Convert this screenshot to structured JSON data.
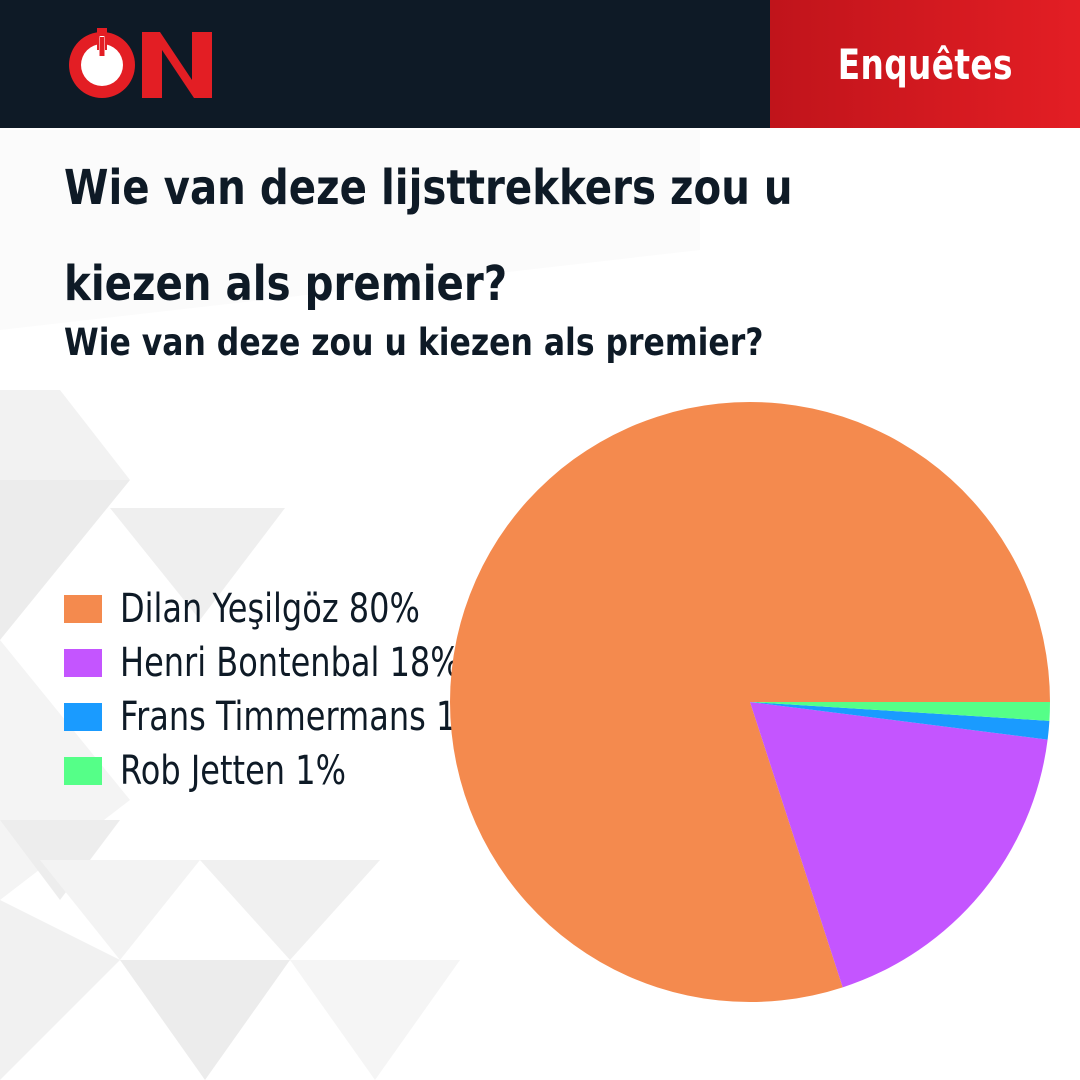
{
  "header": {
    "logo_text": "ON",
    "section_label": "Enquêtes",
    "brand_color": "#e31e24",
    "bar_color": "#0e1a26"
  },
  "question": {
    "title": "Wie van deze lijsttrekkers zou u kiezen als premier?",
    "subtitle": "Wie van deze zou u kiezen als premier?"
  },
  "chart_data": {
    "type": "pie",
    "title": "",
    "categories": [
      "Dilan Yeşilgöz",
      "Henri Bontenbal",
      "Frans Timmermans",
      "Rob Jetten"
    ],
    "values": [
      80,
      18,
      1,
      1
    ],
    "colors": [
      "#f48a4e",
      "#c455ff",
      "#1a9bff",
      "#55ff88"
    ],
    "legend": {
      "placement": "left",
      "entries": [
        "Dilan Yeşilgöz 80%",
        "Henri Bontenbal 18%",
        "Frans Timmermans 1%",
        "Rob Jetten 1%"
      ]
    },
    "start_angle_deg": 0,
    "direction": "counterclockwise"
  }
}
